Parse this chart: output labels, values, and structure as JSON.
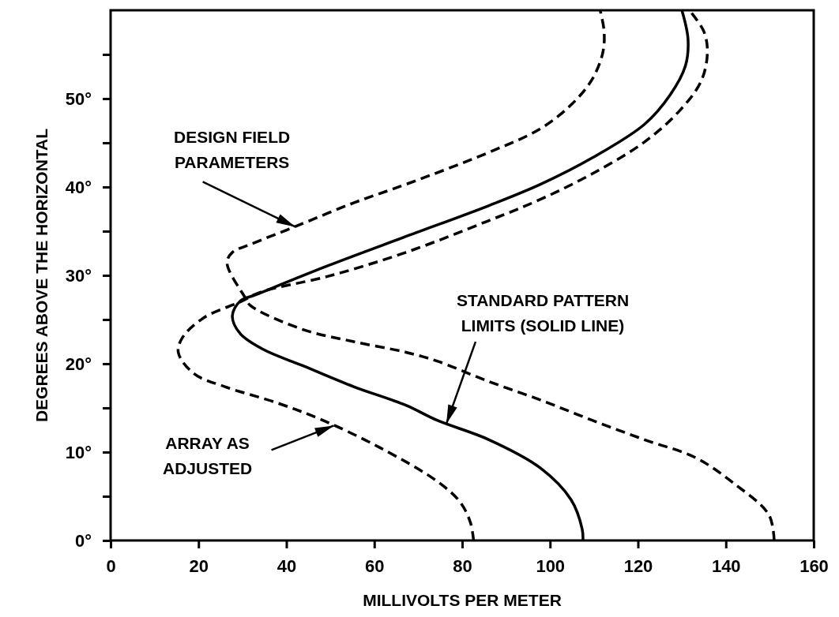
{
  "chart_data": {
    "type": "line",
    "xlabel": "MILLIVOLTS PER METER",
    "ylabel": "DEGREES ABOVE THE HORIZONTAL",
    "xlim": [
      0,
      160
    ],
    "ylim": [
      0,
      60
    ],
    "xticks": [
      0,
      20,
      40,
      60,
      80,
      100,
      120,
      140,
      160
    ],
    "yticks": [
      {
        "value": 0,
        "label": "0°"
      },
      {
        "value": 5,
        "label": null
      },
      {
        "value": 10,
        "label": "10°"
      },
      {
        "value": 15,
        "label": null
      },
      {
        "value": 20,
        "label": "20°"
      },
      {
        "value": 25,
        "label": null
      },
      {
        "value": 30,
        "label": "30°"
      },
      {
        "value": 35,
        "label": null
      },
      {
        "value": 40,
        "label": "40°"
      },
      {
        "value": 45,
        "label": null
      },
      {
        "value": 50,
        "label": "50°"
      },
      {
        "value": 55,
        "label": null
      }
    ],
    "series": [
      {
        "color": "#000000",
        "line_style": "dashed",
        "x": [
          151,
          149.8,
          142,
          133,
          121.5,
          109.6,
          97.8,
          86,
          74.3,
          67.2,
          55.3,
          43.6,
          31.8,
          30.6,
          26.5,
          27.7,
          31.8,
          41.9,
          55.3,
          67.2,
          86,
          97.8,
          104.8,
          109.6,
          112,
          112.3,
          111.4
        ],
        "values": [
          0,
          2.9,
          6.4,
          9.4,
          11.4,
          13.6,
          15.9,
          18,
          20.3,
          21.3,
          22.5,
          23.9,
          26.6,
          27.5,
          31.4,
          32.6,
          33.5,
          35.5,
          38.2,
          40.3,
          43.9,
          46.6,
          49.3,
          52.2,
          55.2,
          57.6,
          60
        ]
      },
      {
        "color": "#000000",
        "line_style": "solid",
        "x": [
          107.5,
          107.3,
          104.8,
          97.8,
          86.1,
          74.3,
          67.2,
          55.3,
          43.6,
          34.8,
          29.5,
          27.7,
          29.5,
          33,
          49.5,
          67.2,
          86.1,
          97.8,
          109.6,
          121.5,
          127.3,
          130.8,
          131.4,
          130
        ],
        "values": [
          0,
          1.3,
          4.6,
          8.2,
          11.4,
          13.6,
          15.3,
          17.4,
          19.8,
          21.6,
          23.4,
          25.4,
          27.1,
          27.8,
          31.1,
          34.4,
          37.9,
          40.3,
          43.3,
          47.1,
          50.4,
          53.7,
          56.7,
          60
        ]
      },
      {
        "color": "#000000",
        "line_style": "dashed",
        "x": [
          82.6,
          81.9,
          79.6,
          74.3,
          61.3,
          48.3,
          37.7,
          26,
          18.9,
          15.4,
          16.4,
          21.2,
          29.5,
          34.1,
          49.5,
          67.2,
          86.1,
          97.8,
          109.6,
          121.5,
          129.6,
          134.4,
          135.8,
          135,
          131.7
        ],
        "values": [
          0,
          2,
          4.3,
          6.7,
          10.5,
          13.6,
          15.6,
          17.4,
          18.9,
          21.3,
          23,
          25.2,
          27,
          28.1,
          29.9,
          32.6,
          36.2,
          38.6,
          41.5,
          45.1,
          48.7,
          52,
          55.2,
          57.6,
          60
        ]
      }
    ],
    "annotations": [
      {
        "text": "DESIGN FIELD\nPARAMETERS",
        "x": 42,
        "y": 35.5
      },
      {
        "text": "STANDARD PATTERN\nLIMITS (SOLID LINE)",
        "x": 76.4,
        "y": 13.2
      },
      {
        "text": "ARRAY AS\nADJUSTED",
        "x": 50.8,
        "y": 13
      }
    ]
  }
}
